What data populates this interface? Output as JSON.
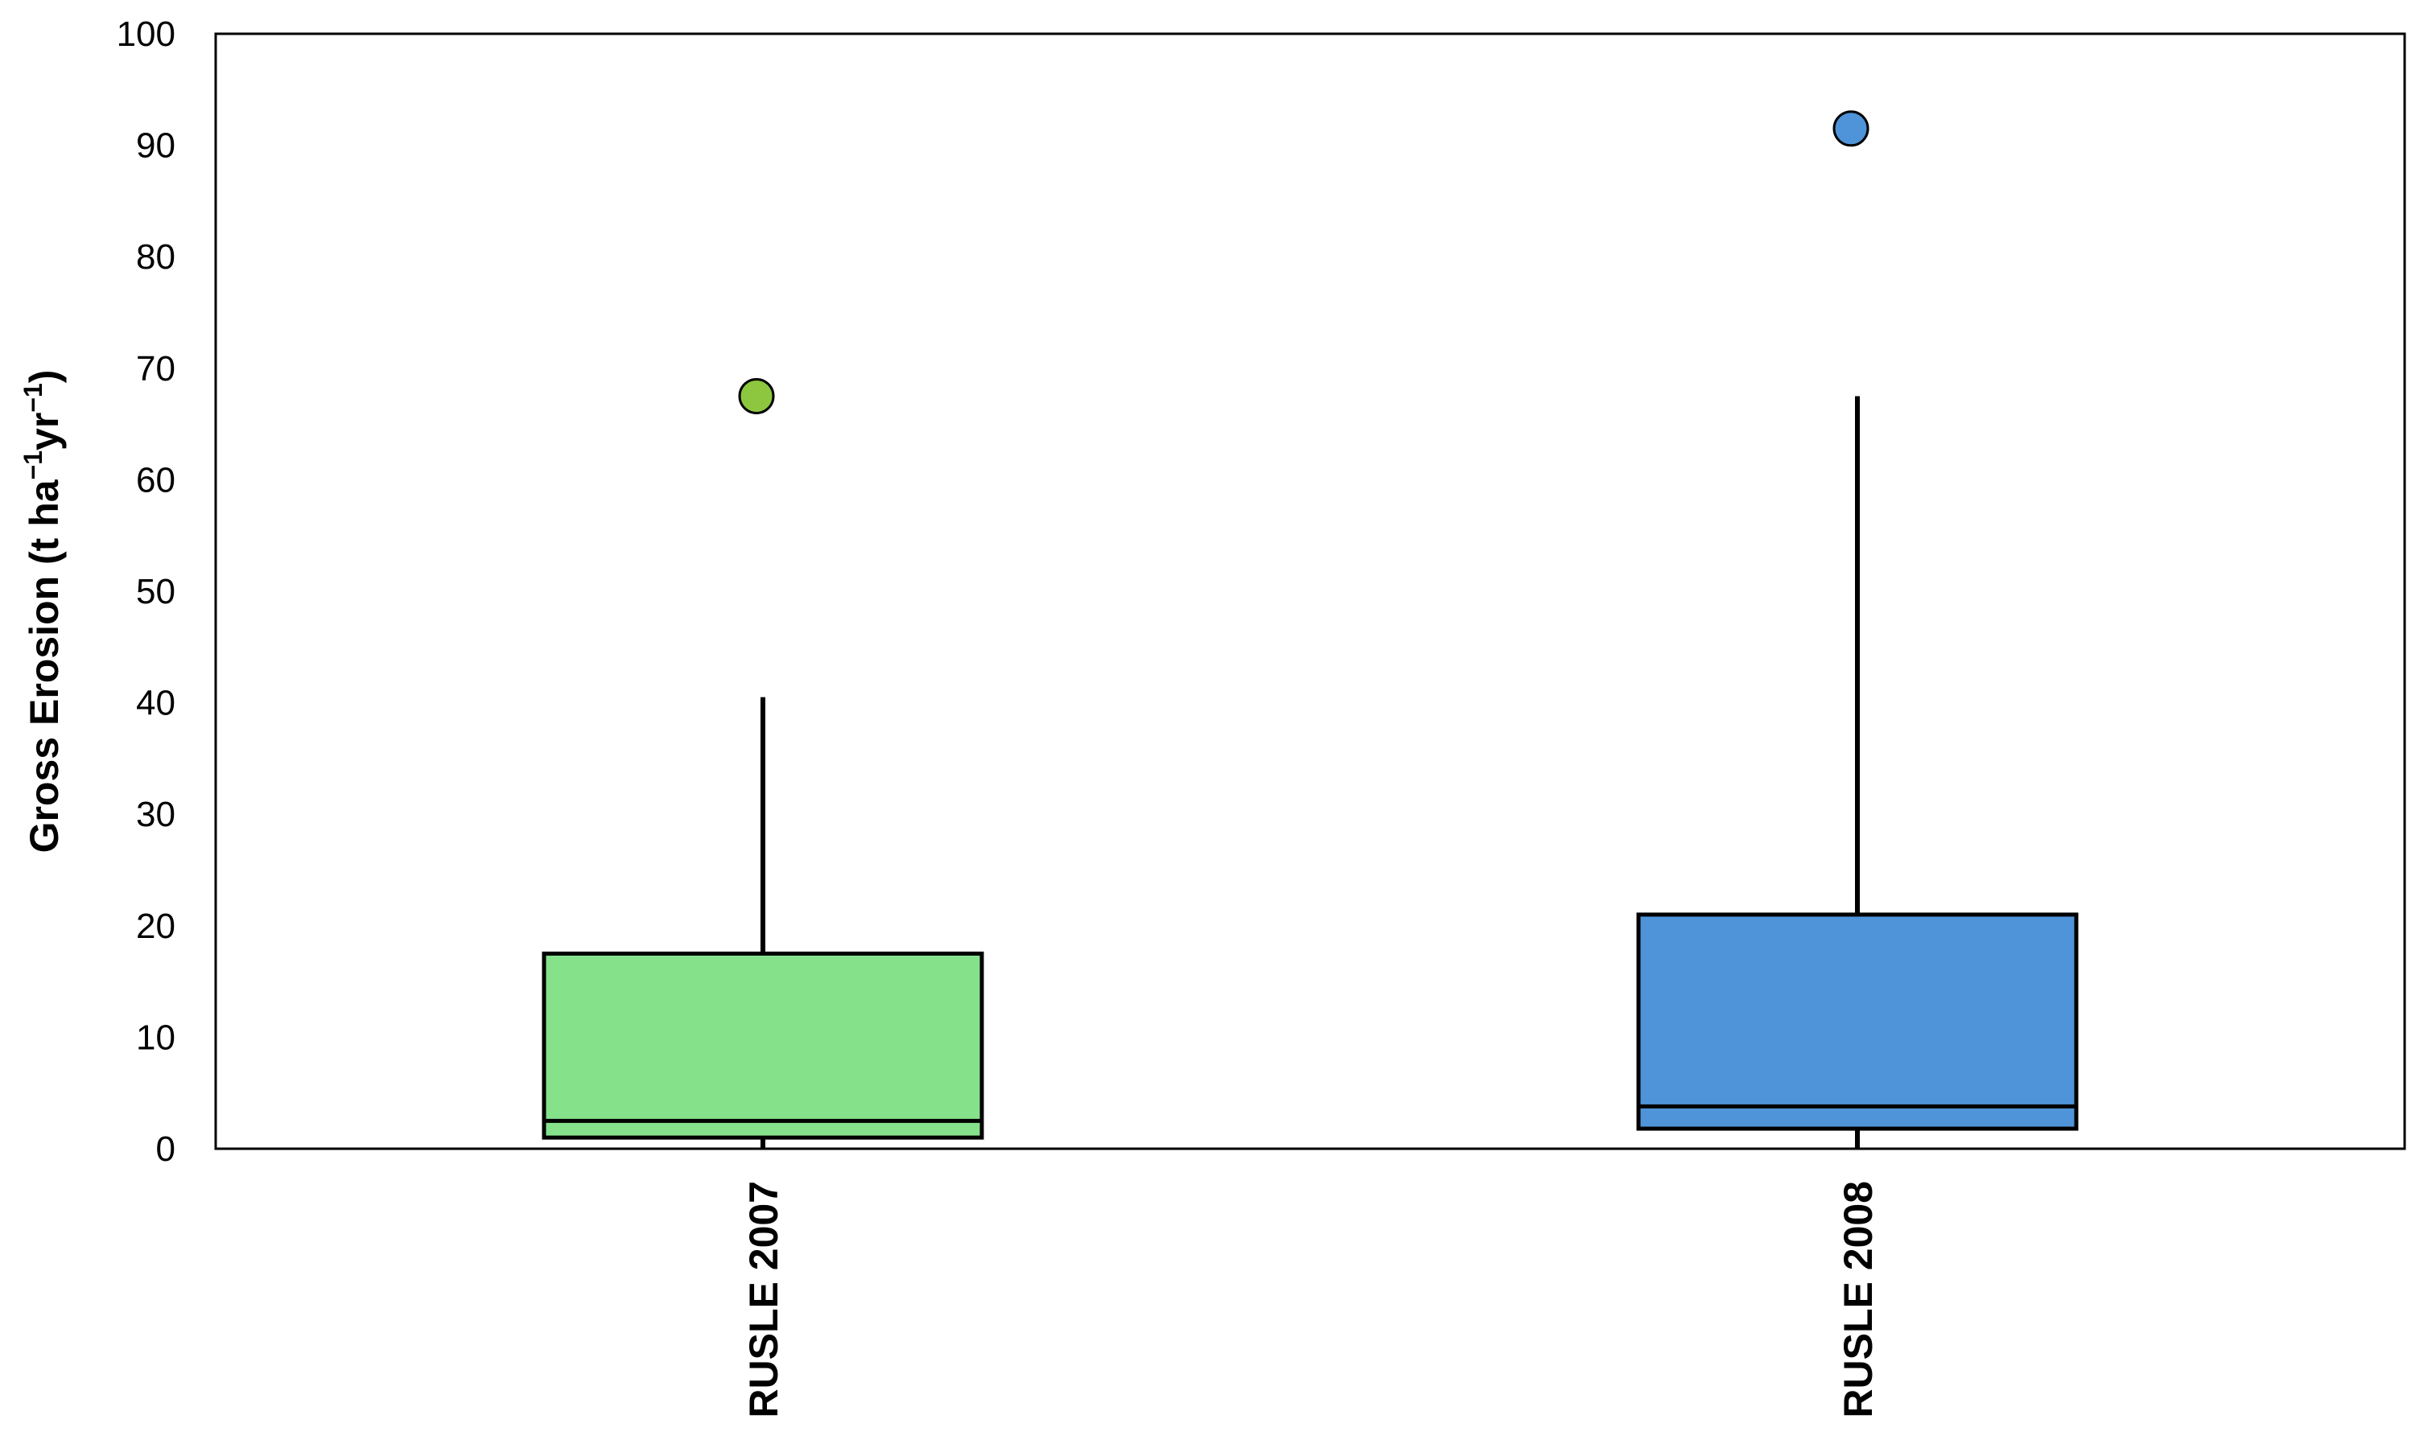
{
  "chart_data": {
    "type": "box",
    "title": "",
    "xlabel": "",
    "ylabel": "Gross Erosion (t ha",
    "ylabel_sup1": "−1",
    "ylabel_mid": "yr",
    "ylabel_sup2": "−1",
    "ylabel_end": ")",
    "ylim": [
      0,
      100
    ],
    "yticks": [
      0,
      10,
      20,
      30,
      40,
      50,
      60,
      70,
      80,
      90,
      100
    ],
    "grid": false,
    "legend": "none",
    "categories": [
      "RUSLE 2007",
      "RUSLE 2008"
    ],
    "boxes": [
      {
        "category": "RUSLE 2007",
        "whisker_low": 1.0,
        "q1": 1.0,
        "median": 2.5,
        "q3": 17.5,
        "whisker_high": 40.5,
        "outliers": [
          67.5
        ],
        "fill": "#85e28b"
      },
      {
        "category": "RUSLE 2008",
        "whisker_low": 1.5,
        "q1": 1.8,
        "median": 3.8,
        "q3": 21.0,
        "whisker_high": 67.5,
        "outliers": [
          91.5
        ],
        "fill": "#4f94d9"
      }
    ],
    "outlier_colors": [
      "#8dc63f",
      "#4f94d9"
    ],
    "line_color": "#000000"
  }
}
